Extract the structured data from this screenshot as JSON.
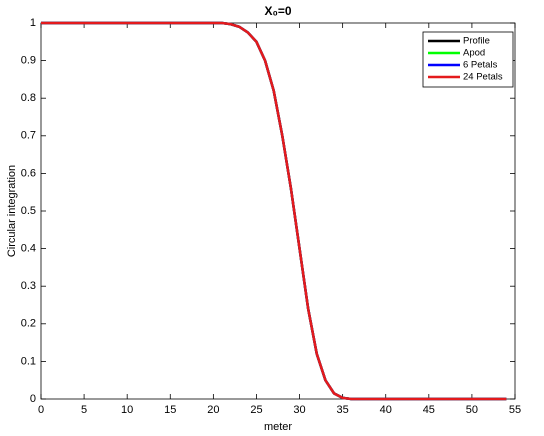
{
  "chart_data": {
    "type": "line",
    "title": "X₀=0",
    "xlabel": "meter",
    "ylabel": "Circular integration",
    "x": [
      0,
      1,
      2,
      3,
      4,
      5,
      6,
      7,
      8,
      9,
      10,
      11,
      12,
      13,
      14,
      15,
      16,
      17,
      18,
      19,
      20,
      21,
      22,
      23,
      24,
      25,
      26,
      27,
      28,
      29,
      30,
      31,
      32,
      33,
      34,
      35,
      36,
      37,
      38,
      39,
      40,
      41,
      42,
      43,
      44,
      45,
      46,
      47,
      48,
      49,
      50,
      51,
      52,
      53,
      54
    ],
    "series": [
      {
        "name": "Profile",
        "color": "#000000",
        "values": [
          1,
          1,
          1,
          1,
          1,
          1,
          1,
          1,
          1,
          1,
          1,
          1,
          1,
          1,
          1,
          1,
          1,
          1,
          1,
          1,
          1,
          1,
          0.997,
          0.99,
          0.975,
          0.95,
          0.9,
          0.82,
          0.7,
          0.56,
          0.4,
          0.24,
          0.12,
          0.05,
          0.015,
          0.003,
          0,
          0,
          0,
          0,
          0,
          0,
          0,
          0,
          0,
          0,
          0,
          0,
          0,
          0,
          0,
          0,
          0,
          0,
          0
        ]
      },
      {
        "name": "Apod",
        "color": "#00ff00",
        "values": [
          1,
          1,
          1,
          1,
          1,
          1,
          1,
          1,
          1,
          1,
          1,
          1,
          1,
          1,
          1,
          1,
          1,
          1,
          1,
          1,
          1,
          1,
          0.997,
          0.99,
          0.975,
          0.95,
          0.9,
          0.82,
          0.7,
          0.56,
          0.4,
          0.24,
          0.12,
          0.05,
          0.015,
          0.003,
          0,
          0,
          0,
          0,
          0,
          0,
          0,
          0,
          0,
          0,
          0,
          0,
          0,
          0,
          0,
          0,
          0,
          0,
          0
        ]
      },
      {
        "name": "6 Petals",
        "color": "#0000ff",
        "values": [
          1,
          1,
          1,
          1,
          1,
          1,
          1,
          1,
          1,
          1,
          1,
          1,
          1,
          1,
          1,
          1,
          1,
          1,
          1,
          1,
          1,
          1,
          0.997,
          0.99,
          0.975,
          0.95,
          0.9,
          0.82,
          0.7,
          0.56,
          0.4,
          0.24,
          0.12,
          0.05,
          0.015,
          0.003,
          0,
          0,
          0,
          0,
          0,
          0,
          0,
          0,
          0,
          0,
          0,
          0,
          0,
          0,
          0,
          0,
          0,
          0,
          0
        ]
      },
      {
        "name": "24 Petals",
        "color": "#e41a1c",
        "values": [
          1,
          1,
          1,
          1,
          1,
          1,
          1,
          1,
          1,
          1,
          1,
          1,
          1,
          1,
          1,
          1,
          1,
          1,
          1,
          1,
          1,
          1,
          0.997,
          0.99,
          0.975,
          0.95,
          0.9,
          0.82,
          0.7,
          0.56,
          0.4,
          0.24,
          0.12,
          0.05,
          0.015,
          0.003,
          0,
          0,
          0,
          0,
          0,
          0,
          0,
          0,
          0,
          0,
          0,
          0,
          0,
          0,
          0,
          0,
          0,
          0,
          0
        ]
      }
    ],
    "xlim": [
      0,
      55
    ],
    "xticks": [
      0,
      5,
      10,
      15,
      20,
      25,
      30,
      35,
      40,
      45,
      50,
      55
    ],
    "ylim": [
      0,
      1
    ],
    "yticks": [
      0,
      0.1,
      0.2,
      0.3,
      0.4,
      0.5,
      0.6,
      0.7,
      0.8,
      0.9,
      1
    ],
    "legend": "upper right"
  }
}
